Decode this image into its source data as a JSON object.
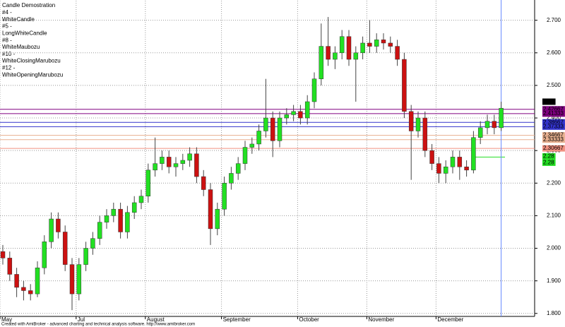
{
  "chart_data": {
    "type": "candlestick",
    "title": "Candle Demostration",
    "annotations": [
      "#4 -",
      "WhiteCandle",
      "#5 -",
      "LongWhiteCandle",
      "#8 -",
      "WhiteMaubozu",
      "#10 -",
      "WhiteClosingMarubozu",
      "#12 -",
      "WhiteOpeningMarubozu"
    ],
    "footer": "Created with AmiBroker - advanced charting and technical analysis software. http://www.amibroker.com",
    "open": [
      1.99,
      1.97,
      1.92,
      1.88,
      1.87,
      1.86,
      1.94,
      2.02,
      2.09,
      2.05,
      1.95,
      1.86,
      1.95,
      2.0,
      2.03,
      2.08,
      2.1,
      2.12,
      2.05,
      2.11,
      2.14,
      2.16,
      2.24,
      2.26,
      2.28,
      2.25,
      2.26,
      2.27,
      2.29,
      2.22,
      2.18,
      2.06,
      2.12,
      2.2,
      2.23,
      2.26,
      2.31,
      2.32,
      2.36,
      2.4,
      2.33,
      2.4,
      2.41,
      2.42,
      2.4,
      2.45,
      2.52,
      2.62,
      2.58,
      2.6,
      2.65,
      2.58,
      2.6,
      2.63,
      2.62,
      2.64,
      2.63,
      2.62,
      2.58,
      2.42,
      2.36,
      2.4,
      2.3,
      2.26,
      2.23,
      2.25,
      2.28,
      2.25,
      2.24,
      2.34,
      2.37,
      2.39,
      2.37
    ],
    "high": [
      2.01,
      1.99,
      1.94,
      1.9,
      1.89,
      1.96,
      2.04,
      2.11,
      2.11,
      2.07,
      1.97,
      1.97,
      2.02,
      2.05,
      2.1,
      2.12,
      2.14,
      2.14,
      2.13,
      2.16,
      2.18,
      2.26,
      2.34,
      2.3,
      2.3,
      2.28,
      2.29,
      2.31,
      2.31,
      2.24,
      2.2,
      2.14,
      2.22,
      2.25,
      2.28,
      2.33,
      2.34,
      2.38,
      2.52,
      2.42,
      2.42,
      2.43,
      2.44,
      2.44,
      2.47,
      2.54,
      2.69,
      2.71,
      2.62,
      2.67,
      2.67,
      2.62,
      2.65,
      2.7,
      2.66,
      2.66,
      2.65,
      2.64,
      2.6,
      2.44,
      2.42,
      2.42,
      2.32,
      2.28,
      2.27,
      2.3,
      2.3,
      2.27,
      2.36,
      2.39,
      2.41,
      2.41,
      2.45
    ],
    "low": [
      1.95,
      1.9,
      1.85,
      1.84,
      1.84,
      1.85,
      1.92,
      2.0,
      2.03,
      1.93,
      1.81,
      1.84,
      1.93,
      1.98,
      2.01,
      2.06,
      2.08,
      2.03,
      2.03,
      2.09,
      2.12,
      2.14,
      2.22,
      2.24,
      2.23,
      2.22,
      2.24,
      2.25,
      2.2,
      2.16,
      2.01,
      2.04,
      2.1,
      2.18,
      2.21,
      2.24,
      2.29,
      2.3,
      2.34,
      2.28,
      2.31,
      2.38,
      2.39,
      2.38,
      2.38,
      2.43,
      2.5,
      2.56,
      2.55,
      2.58,
      2.56,
      2.45,
      2.58,
      2.6,
      2.6,
      2.61,
      2.6,
      2.56,
      2.4,
      2.21,
      2.34,
      2.28,
      2.24,
      2.2,
      2.2,
      2.23,
      2.21,
      2.22,
      2.23,
      2.32,
      2.35,
      2.35,
      2.36
    ],
    "close": [
      1.97,
      1.92,
      1.88,
      1.87,
      1.86,
      1.94,
      2.02,
      2.09,
      2.05,
      1.95,
      1.86,
      1.95,
      2.0,
      2.03,
      2.08,
      2.1,
      2.12,
      2.05,
      2.11,
      2.14,
      2.16,
      2.24,
      2.26,
      2.28,
      2.25,
      2.26,
      2.27,
      2.29,
      2.22,
      2.18,
      2.06,
      2.12,
      2.2,
      2.23,
      2.26,
      2.31,
      2.32,
      2.36,
      2.4,
      2.33,
      2.4,
      2.41,
      2.42,
      2.4,
      2.45,
      2.52,
      2.62,
      2.58,
      2.6,
      2.65,
      2.58,
      2.6,
      2.63,
      2.62,
      2.64,
      2.63,
      2.62,
      2.58,
      2.42,
      2.36,
      2.4,
      2.3,
      2.26,
      2.23,
      2.25,
      2.28,
      2.25,
      2.24,
      2.34,
      2.37,
      2.39,
      2.37,
      2.43
    ],
    "up_color": "#22e022",
    "down_color": "#cc1111",
    "xticks": [
      {
        "value": 0,
        "label": "May"
      },
      {
        "value": 11,
        "label": "Jul"
      },
      {
        "value": 21,
        "label": "August"
      },
      {
        "value": 32,
        "label": "September"
      },
      {
        "value": 43,
        "label": "October"
      },
      {
        "value": 53,
        "label": "November"
      },
      {
        "value": 63,
        "label": "December"
      }
    ],
    "ylim": [
      1.78,
      2.76
    ],
    "yticks": [
      {
        "value": 1.8,
        "label": "1.800"
      },
      {
        "value": 1.9,
        "label": "1.900"
      },
      {
        "value": 2.0,
        "label": "2.000"
      },
      {
        "value": 2.1,
        "label": "2.100"
      },
      {
        "value": 2.2,
        "label": "2.200"
      },
      {
        "value": 2.3,
        "label": "2.300"
      },
      {
        "value": 2.4,
        "label": "2.400"
      },
      {
        "value": 2.5,
        "label": "2.500"
      },
      {
        "value": 2.6,
        "label": "2.600"
      },
      {
        "value": 2.7,
        "label": "2.700"
      }
    ],
    "levels": [
      {
        "value": 2.45,
        "color": "#000000"
      },
      {
        "value": 2.42667,
        "color": "#800080"
      },
      {
        "value": 2.41333,
        "color": "#800080"
      },
      {
        "value": 2.38667,
        "color": "#3333cc"
      },
      {
        "value": 2.37333,
        "color": "#3333cc"
      },
      {
        "value": 2.34667,
        "color": "#e8b090"
      },
      {
        "value": 2.33333,
        "color": "#e8b090"
      },
      {
        "value": 2.30667,
        "color": "#f09080"
      },
      {
        "value": 2.28,
        "color": "#22dd22"
      },
      {
        "value": 2.28,
        "color": "#22dd22"
      }
    ],
    "grid": true
  }
}
